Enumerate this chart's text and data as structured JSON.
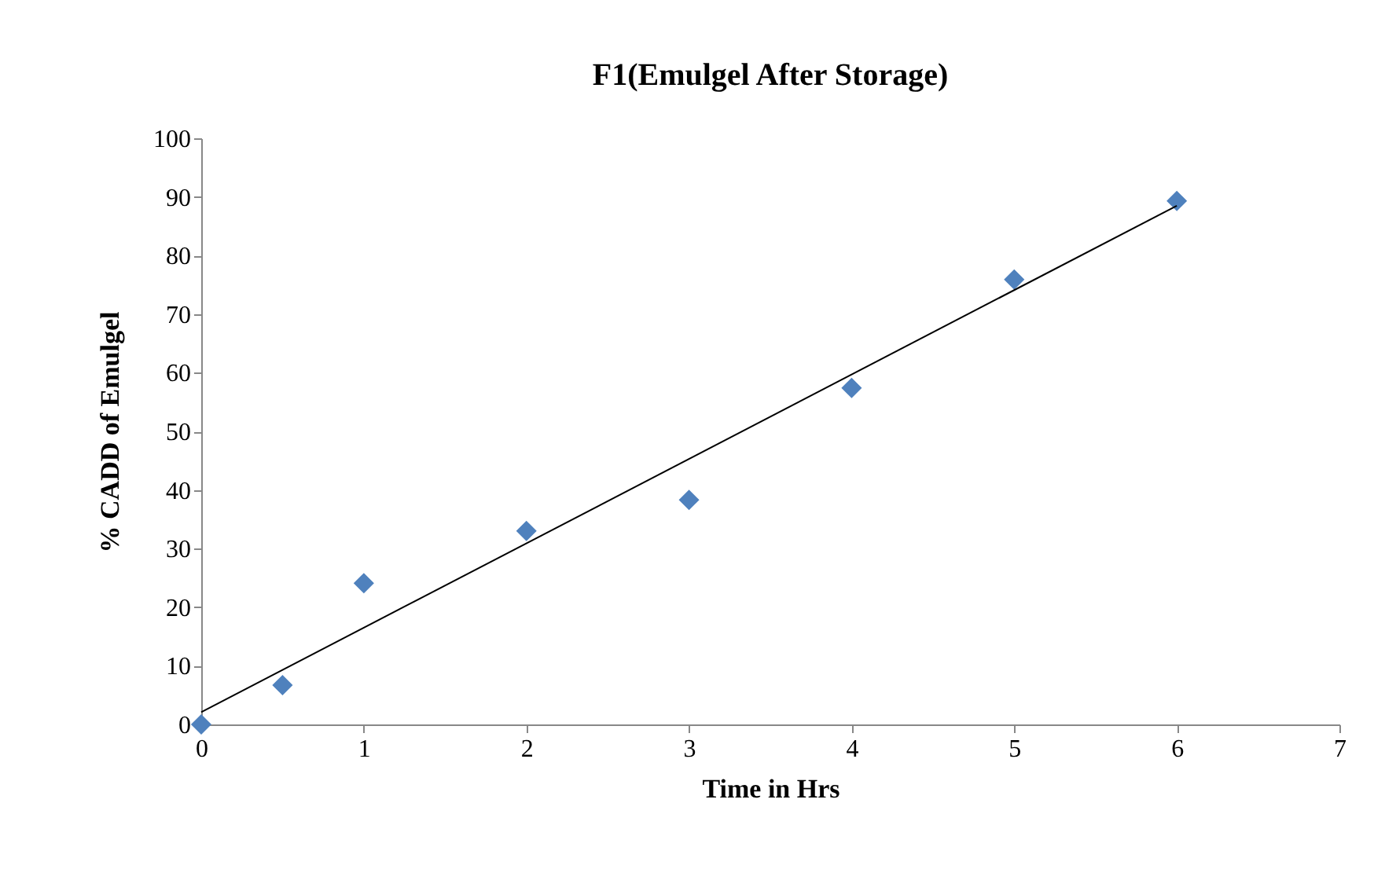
{
  "chart_data": {
    "type": "scatter",
    "title": "F1(Emulgel After Storage)",
    "xlabel": "Time in  Hrs",
    "ylabel": "% CADD of Emulgel",
    "xlim": [
      0,
      7
    ],
    "xticks": [
      0,
      1,
      2,
      3,
      4,
      5,
      6,
      7
    ],
    "ylim": [
      0,
      100
    ],
    "yticks": [
      0,
      10,
      20,
      30,
      40,
      50,
      60,
      70,
      80,
      90,
      100
    ],
    "grid": false,
    "series": [
      {
        "type": "scatter",
        "marker": "diamond",
        "color": "#4f81bd",
        "x": [
          0,
          0.5,
          1,
          2,
          3,
          4,
          5,
          6
        ],
        "values": [
          0,
          6.7,
          24.1,
          33.0,
          38.3,
          57.4,
          75.9,
          89.3
        ]
      },
      {
        "type": "line",
        "line_style": "solid",
        "color": "#000000",
        "x": [
          0,
          6
        ],
        "values": [
          2.1,
          88.5
        ]
      }
    ]
  }
}
